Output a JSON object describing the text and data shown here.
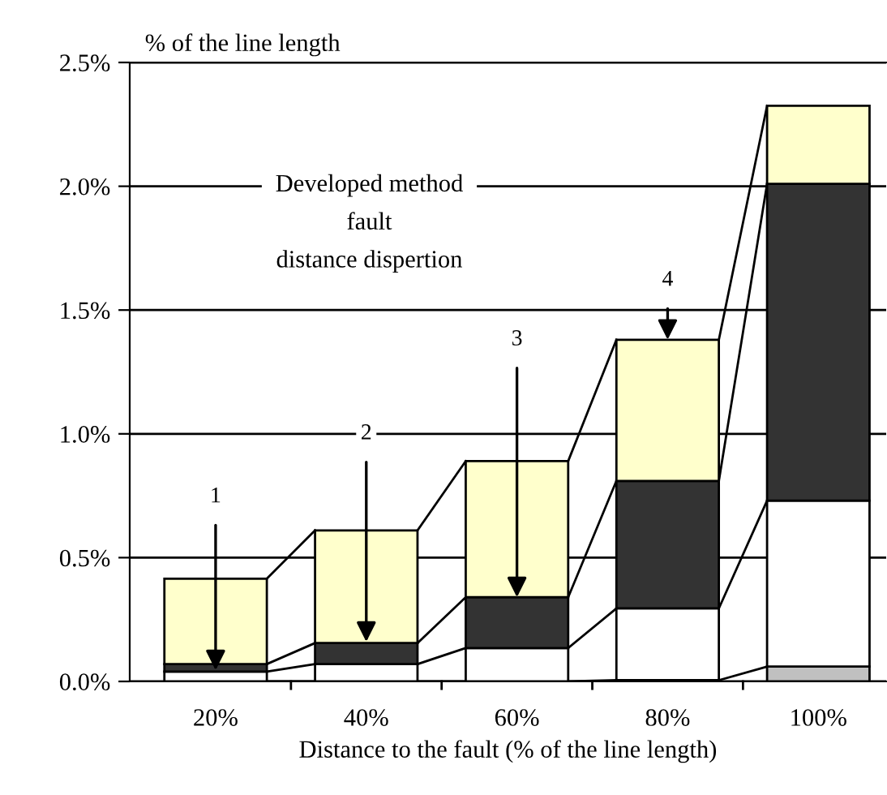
{
  "chart_data": {
    "type": "bar",
    "stacked": true,
    "xlabel": "Distance to the fault (% of the line length)",
    "ylabel": "% of the line length",
    "categories": [
      "20%",
      "40%",
      "60%",
      "80%",
      "100%"
    ],
    "series": [
      {
        "color": "#c0c0c0",
        "values": [
          0,
          0,
          0,
          0.005,
          0.06
        ]
      },
      {
        "color": "#ffffff",
        "values": [
          0.04,
          0.07,
          0.135,
          0.29,
          0.67
        ]
      },
      {
        "color": "#333333",
        "values": [
          0.03,
          0.085,
          0.205,
          0.515,
          1.28
        ]
      },
      {
        "color": "#ffffcc",
        "values": [
          0.345,
          0.455,
          0.55,
          0.57,
          0.315
        ]
      }
    ],
    "ylim": [
      0,
      2.5
    ],
    "yticks": [
      {
        "value": 0,
        "label": "0.0%"
      },
      {
        "value": 0.5,
        "label": "0.5%"
      },
      {
        "value": 1.0,
        "label": "1.0%"
      },
      {
        "value": 1.5,
        "label": "1.5%"
      },
      {
        "value": 2.0,
        "label": "2.0%"
      },
      {
        "value": 2.5,
        "label": "2.5%"
      }
    ],
    "grid": "y",
    "annotations": [
      "Developed method\nfault\ndistance dispertion",
      {
        "text": "1",
        "x": "20%",
        "y": 0.045
      },
      {
        "text": "2",
        "x": "40%",
        "y": 0.16
      },
      {
        "text": "3",
        "x": "60%",
        "y": 0.34
      },
      {
        "text": "4",
        "x": "80%",
        "y": 1.38
      }
    ]
  }
}
